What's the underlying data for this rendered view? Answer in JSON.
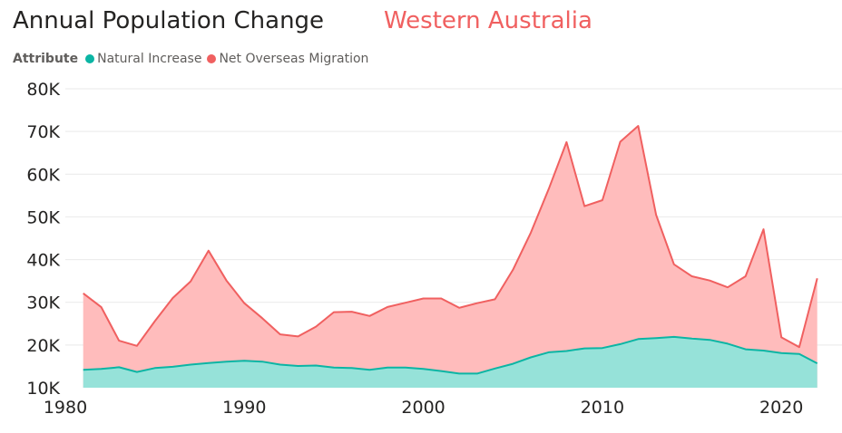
{
  "header": {
    "title": "Annual Population Change",
    "subtitle": "Western Australia",
    "subtitle_color": "#f06060"
  },
  "legend": {
    "title": "Attribute",
    "items": [
      {
        "label": "Natural Increase",
        "color": "#0bb5a4"
      },
      {
        "label": "Net Overseas Migration",
        "color": "#f06060"
      }
    ]
  },
  "chart_data": {
    "type": "area",
    "title": "Annual Population Change",
    "subtitle": "Western Australia",
    "xlabel": "",
    "ylabel": "",
    "x": [
      1981,
      1982,
      1983,
      1984,
      1985,
      1986,
      1987,
      1988,
      1989,
      1990,
      1991,
      1992,
      1993,
      1994,
      1995,
      1996,
      1997,
      1998,
      1999,
      2000,
      2001,
      2002,
      2003,
      2004,
      2005,
      2006,
      2007,
      2008,
      2009,
      2010,
      2011,
      2012,
      2013,
      2014,
      2015,
      2016,
      2017,
      2018,
      2019,
      2020,
      2021,
      2022
    ],
    "series": [
      {
        "name": "Natural Increase",
        "color": "#0bb5a4",
        "fill": "#96e2d9",
        "values": [
          14200,
          14400,
          14800,
          13700,
          14600,
          14900,
          15400,
          15800,
          16100,
          16300,
          16100,
          15400,
          15100,
          15200,
          14700,
          14600,
          14200,
          14700,
          14700,
          14400,
          13900,
          13300,
          13300,
          14500,
          15600,
          17100,
          18300,
          18600,
          19200,
          19300,
          20200,
          21400,
          21600,
          21900,
          21500,
          21200,
          20300,
          19000,
          18700,
          18100,
          17900,
          15700
        ]
      },
      {
        "name": "Net Overseas Migration",
        "color": "#f06060",
        "fill": "#ffbcbc",
        "values": [
          32100,
          28900,
          21000,
          19800,
          25600,
          31000,
          34900,
          42100,
          35100,
          29800,
          26300,
          22500,
          22000,
          24300,
          27700,
          27800,
          26800,
          28900,
          29900,
          30900,
          30900,
          28700,
          29800,
          30700,
          37600,
          46300,
          56500,
          67500,
          52500,
          53900,
          67600,
          71300,
          50500,
          38900,
          36100,
          35100,
          33500,
          36100,
          47100,
          21800,
          19500,
          35600
        ]
      }
    ],
    "ylim": [
      10000,
      80000
    ],
    "xlim": [
      1980,
      2023.8
    ],
    "y_ticks": [
      10000,
      20000,
      30000,
      40000,
      50000,
      60000,
      70000,
      80000
    ],
    "y_tick_labels": [
      "10K",
      "20K",
      "30K",
      "40K",
      "50K",
      "60K",
      "70K",
      "80K"
    ],
    "x_ticks": [
      1980,
      1990,
      2000,
      2010,
      2020
    ],
    "x_tick_labels": [
      "1980",
      "1990",
      "2000",
      "2010",
      "2020"
    ],
    "grid": true,
    "legend_position": "top-left"
  }
}
